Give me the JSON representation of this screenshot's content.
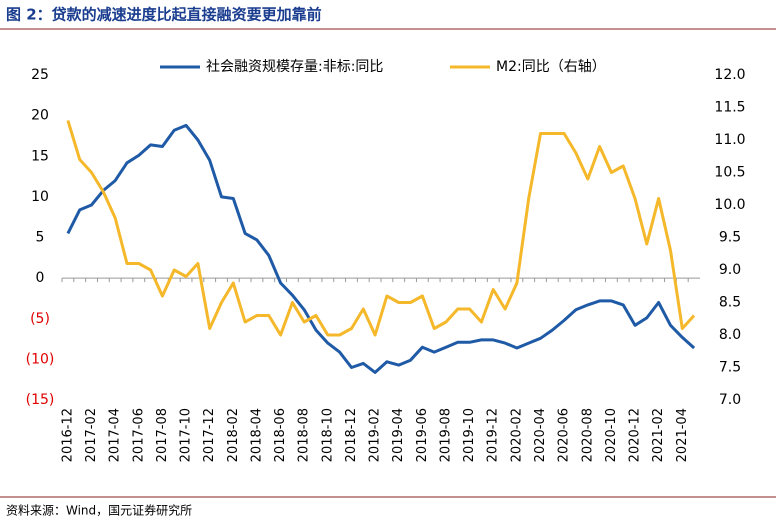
{
  "chart_data": {
    "type": "line",
    "title": "图 2：贷款的减速进度比起直接融资要更加靠前",
    "source": "资料来源：Wind，国元证券研究所",
    "categories": [
      "2016-12",
      null,
      "2017-02",
      null,
      "2017-04",
      null,
      "2017-06",
      null,
      "2017-08",
      null,
      "2017-10",
      null,
      "2017-12",
      null,
      "2018-02",
      null,
      "2018-04",
      null,
      "2018-06",
      null,
      "2018-08",
      null,
      "2018-10",
      null,
      "2018-12",
      null,
      "2019-02",
      null,
      "2019-04",
      null,
      "2019-06",
      null,
      "2019-08",
      null,
      "2019-10",
      null,
      "2019-12",
      null,
      "2020-02",
      null,
      "2020-04",
      null,
      "2020-06",
      null,
      "2020-08",
      null,
      "2020-10",
      null,
      "2020-12",
      null,
      "2021-02",
      null,
      "2021-04",
      null
    ],
    "series": [
      {
        "name": "社会融资规模存量:非标:同比",
        "color": "#1f5aa6",
        "values": [
          5.5,
          8.4,
          9.0,
          10.8,
          12.0,
          14.2,
          15.1,
          16.4,
          16.2,
          18.2,
          18.8,
          17.0,
          14.5,
          10.0,
          9.8,
          5.5,
          4.7,
          2.8,
          -0.6,
          -2.1,
          -3.9,
          -6.4,
          -8.0,
          -9.1,
          -11.0,
          -10.5,
          -11.6,
          -10.3,
          -10.7,
          -10.1,
          -8.5,
          -9.1,
          -8.5,
          -7.9,
          -7.9,
          -7.6,
          -7.6,
          -8.0,
          -8.6,
          -8.0,
          -7.4,
          -6.4,
          -5.2,
          -3.9,
          -3.3,
          -2.8,
          -2.8,
          -3.3,
          -5.8,
          -4.9,
          -3.0,
          -5.8,
          -7.3,
          -8.6
        ]
      },
      {
        "name": "M2:同比（右轴）",
        "color": "#f5b82a",
        "axis": "y2",
        "values": [
          11.3,
          10.7,
          10.5,
          10.2,
          9.8,
          9.1,
          9.1,
          9.0,
          8.6,
          9.0,
          8.9,
          9.1,
          8.1,
          8.5,
          8.8,
          8.2,
          8.3,
          8.3,
          8.0,
          8.5,
          8.2,
          8.3,
          8.0,
          8.0,
          8.1,
          8.4,
          8.0,
          8.6,
          8.5,
          8.5,
          8.6,
          8.1,
          8.2,
          8.4,
          8.4,
          8.2,
          8.7,
          8.4,
          8.8,
          10.1,
          11.1,
          11.1,
          11.1,
          10.8,
          10.4,
          10.9,
          10.5,
          10.6,
          10.1,
          9.4,
          10.1,
          9.3,
          8.1,
          8.3
        ]
      }
    ],
    "ylim": [
      -15,
      25
    ],
    "yticks": [
      25,
      20,
      15,
      10,
      5,
      0,
      {
        "value": -5,
        "label": "(5)"
      },
      {
        "value": -10,
        "label": "(10)"
      },
      {
        "value": -15,
        "label": "(15)"
      }
    ],
    "negative_tick_color": "#e00000",
    "y2lim": [
      7,
      12
    ],
    "y2ticks": [
      {
        "value": 12,
        "label": "12.0"
      },
      11.5,
      {
        "value": 11,
        "label": "11.0"
      },
      10.5,
      {
        "value": 10,
        "label": "10.0"
      },
      9.5,
      {
        "value": 9,
        "label": "9.0"
      },
      8.5,
      {
        "value": 8,
        "label": "8.0"
      },
      7.5,
      {
        "value": 7,
        "label": "7.0"
      }
    ],
    "legend": "top"
  }
}
